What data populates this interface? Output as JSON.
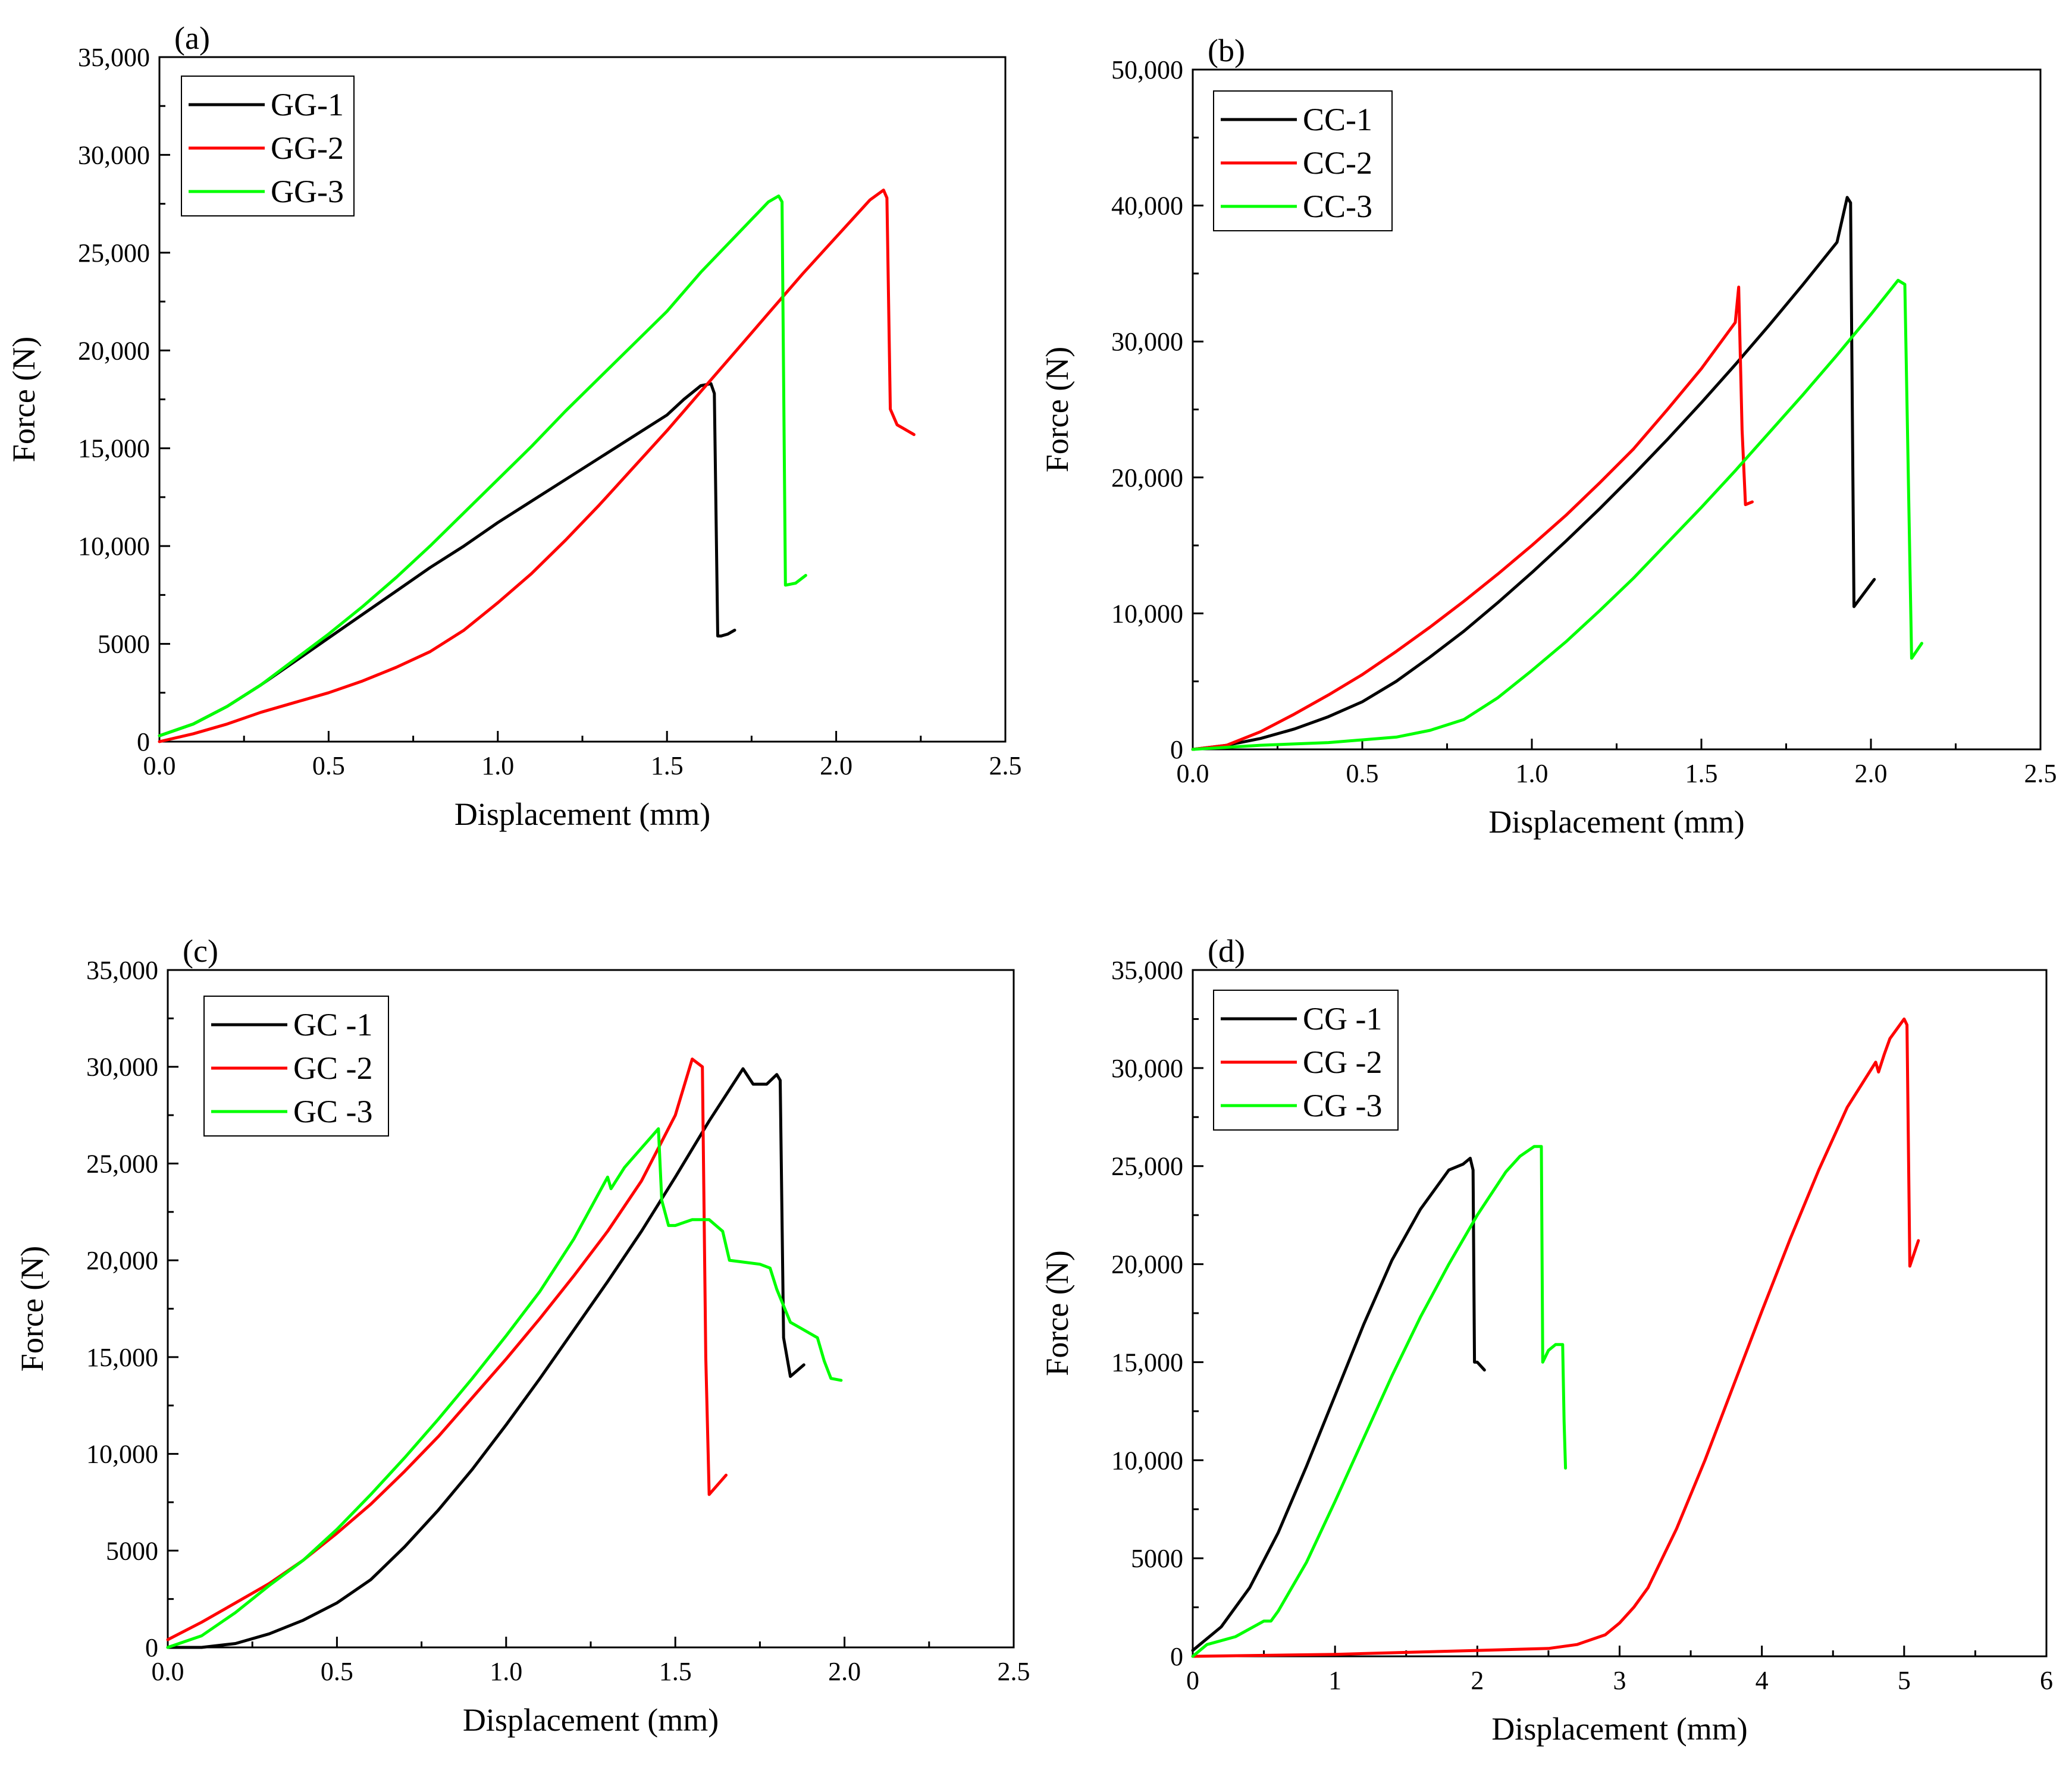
{
  "chart_data": [
    {
      "panel": "(a)",
      "type": "line",
      "xlabel": "Displacement (mm)",
      "ylabel": "Force (N)",
      "xlim": [
        0,
        2.5
      ],
      "ylim": [
        0,
        35000
      ],
      "xticks": [
        0,
        0.5,
        1,
        1.5,
        2,
        2.5
      ],
      "xtick_labels": [
        "0.0",
        "0.5",
        "1.0",
        "1.5",
        "2.0",
        "2.5"
      ],
      "yticks": [
        0,
        5000,
        10000,
        15000,
        20000,
        25000,
        30000,
        35000
      ],
      "ytick_labels": [
        "0",
        "5000",
        "10,000",
        "15,000",
        "20,000",
        "25,000",
        "30,000",
        "35,000"
      ],
      "legend_position": "top-left",
      "series": [
        {
          "name": "GG-1",
          "color": "#000000",
          "x": [
            0,
            0.1,
            0.2,
            0.3,
            0.4,
            0.5,
            0.6,
            0.7,
            0.8,
            0.9,
            1.0,
            1.1,
            1.2,
            1.3,
            1.4,
            1.5,
            1.55,
            1.6,
            1.63,
            1.64,
            1.65,
            1.66,
            1.68,
            1.7
          ],
          "y": [
            300,
            900,
            1800,
            2900,
            4100,
            5300,
            6500,
            7700,
            8900,
            10000,
            11200,
            12300,
            13400,
            14500,
            15600,
            16700,
            17500,
            18200,
            18300,
            17800,
            5400,
            5400,
            5500,
            5700
          ]
        },
        {
          "name": "GG-2",
          "color": "#ff0000",
          "x": [
            0,
            0.1,
            0.2,
            0.3,
            0.4,
            0.5,
            0.6,
            0.7,
            0.8,
            0.9,
            1.0,
            1.1,
            1.2,
            1.3,
            1.4,
            1.5,
            1.6,
            1.7,
            1.8,
            1.9,
            2.0,
            2.1,
            2.14,
            2.15,
            2.16,
            2.18,
            2.2,
            2.23
          ],
          "y": [
            0,
            400,
            900,
            1500,
            2000,
            2500,
            3100,
            3800,
            4600,
            5700,
            7100,
            8600,
            10300,
            12100,
            14000,
            15900,
            17900,
            19900,
            21900,
            23900,
            25800,
            27700,
            28200,
            27800,
            17000,
            16200,
            16000,
            15700
          ]
        },
        {
          "name": "GG-3",
          "color": "#00ff00",
          "x": [
            0,
            0.1,
            0.2,
            0.3,
            0.4,
            0.5,
            0.6,
            0.7,
            0.8,
            0.9,
            1.0,
            1.1,
            1.2,
            1.3,
            1.4,
            1.5,
            1.6,
            1.7,
            1.8,
            1.83,
            1.84,
            1.85,
            1.88,
            1.91
          ],
          "y": [
            300,
            900,
            1800,
            2900,
            4200,
            5500,
            6900,
            8400,
            10000,
            11700,
            13400,
            15100,
            16900,
            18600,
            20300,
            22000,
            24000,
            25800,
            27600,
            27900,
            27600,
            8000,
            8100,
            8500
          ]
        }
      ]
    },
    {
      "panel": "(b)",
      "type": "line",
      "xlabel": "Displacement (mm)",
      "ylabel": "Force (N)",
      "xlim": [
        0,
        2.5
      ],
      "ylim": [
        0,
        50000
      ],
      "xticks": [
        0,
        0.5,
        1,
        1.5,
        2,
        2.5
      ],
      "xtick_labels": [
        "0.0",
        "0.5",
        "1.0",
        "1.5",
        "2.0",
        "2.5"
      ],
      "yticks": [
        0,
        10000,
        20000,
        30000,
        40000,
        50000
      ],
      "ytick_labels": [
        "0",
        "10,000",
        "20,000",
        "30,000",
        "40,000",
        "50,000"
      ],
      "legend_position": "top-left",
      "series": [
        {
          "name": "CC-1",
          "color": "#000000",
          "x": [
            0,
            0.1,
            0.2,
            0.3,
            0.4,
            0.5,
            0.6,
            0.7,
            0.8,
            0.9,
            1.0,
            1.1,
            1.2,
            1.3,
            1.4,
            1.5,
            1.6,
            1.7,
            1.8,
            1.9,
            1.93,
            1.94,
            1.95,
            1.98,
            2.01
          ],
          "y": [
            0,
            300,
            800,
            1500,
            2400,
            3500,
            5000,
            6800,
            8700,
            10800,
            13000,
            15300,
            17700,
            20200,
            22800,
            25500,
            28300,
            31200,
            34200,
            37300,
            40600,
            40200,
            10500,
            11500,
            12500
          ]
        },
        {
          "name": "CC-2",
          "color": "#ff0000",
          "x": [
            0,
            0.1,
            0.2,
            0.3,
            0.4,
            0.5,
            0.6,
            0.7,
            0.8,
            0.9,
            1.0,
            1.1,
            1.2,
            1.3,
            1.4,
            1.5,
            1.6,
            1.61,
            1.62,
            1.63,
            1.65
          ],
          "y": [
            0,
            300,
            1300,
            2600,
            4000,
            5500,
            7200,
            9000,
            10900,
            12900,
            15000,
            17200,
            19600,
            22100,
            25000,
            28000,
            31400,
            34000,
            23500,
            18000,
            18200
          ]
        },
        {
          "name": "CC-3",
          "color": "#00ff00",
          "x": [
            0,
            0.2,
            0.4,
            0.6,
            0.7,
            0.8,
            0.9,
            1.0,
            1.1,
            1.2,
            1.3,
            1.4,
            1.5,
            1.6,
            1.7,
            1.8,
            1.9,
            2.0,
            2.08,
            2.1,
            2.12,
            2.15
          ],
          "y": [
            0,
            300,
            500,
            900,
            1400,
            2200,
            3800,
            5800,
            7900,
            10200,
            12600,
            15200,
            17800,
            20500,
            23300,
            26100,
            29000,
            32000,
            34500,
            34200,
            6700,
            7800
          ]
        }
      ]
    },
    {
      "panel": "(c)",
      "type": "line",
      "xlabel": "Displacement (mm)",
      "ylabel": "Force (N)",
      "xlim": [
        0,
        2.5
      ],
      "ylim": [
        0,
        35000
      ],
      "xticks": [
        0,
        0.5,
        1,
        1.5,
        2,
        2.5
      ],
      "xtick_labels": [
        "0.0",
        "0.5",
        "1.0",
        "1.5",
        "2.0",
        "2.5"
      ],
      "yticks": [
        0,
        5000,
        10000,
        15000,
        20000,
        25000,
        30000,
        35000
      ],
      "ytick_labels": [
        "0",
        "5000",
        "10,000",
        "15,000",
        "20,000",
        "25,000",
        "30,000",
        "35,000"
      ],
      "legend_position": "top-left",
      "series": [
        {
          "name": "GC -1",
          "color": "#000000",
          "x": [
            0,
            0.1,
            0.2,
            0.3,
            0.4,
            0.5,
            0.6,
            0.7,
            0.8,
            0.9,
            1.0,
            1.1,
            1.2,
            1.3,
            1.4,
            1.5,
            1.6,
            1.7,
            1.73,
            1.77,
            1.8,
            1.81,
            1.82,
            1.84,
            1.88
          ],
          "y": [
            0,
            0,
            200,
            700,
            1400,
            2300,
            3500,
            5200,
            7100,
            9200,
            11500,
            13900,
            16400,
            18900,
            21500,
            24300,
            27200,
            29900,
            29100,
            29100,
            29600,
            29300,
            16000,
            14000,
            14600
          ]
        },
        {
          "name": "GC -2",
          "color": "#ff0000",
          "x": [
            0,
            0.1,
            0.2,
            0.3,
            0.4,
            0.5,
            0.6,
            0.7,
            0.8,
            0.9,
            1.0,
            1.1,
            1.2,
            1.3,
            1.4,
            1.5,
            1.55,
            1.58,
            1.59,
            1.6,
            1.65
          ],
          "y": [
            400,
            1300,
            2300,
            3300,
            4500,
            5900,
            7400,
            9100,
            10900,
            12900,
            14900,
            17000,
            19200,
            21500,
            24100,
            27500,
            30400,
            30000,
            15000,
            7900,
            8900
          ]
        },
        {
          "name": "GC -3",
          "color": "#00ff00",
          "x": [
            0,
            0.1,
            0.2,
            0.3,
            0.4,
            0.5,
            0.6,
            0.7,
            0.8,
            0.9,
            1.0,
            1.1,
            1.2,
            1.3,
            1.31,
            1.35,
            1.4,
            1.45,
            1.46,
            1.48,
            1.5,
            1.55,
            1.6,
            1.62,
            1.64,
            1.66,
            1.75,
            1.78,
            1.8,
            1.84,
            1.87,
            1.92,
            1.94,
            1.96,
            1.99
          ],
          "y": [
            0,
            600,
            1800,
            3200,
            4500,
            6100,
            7900,
            9800,
            11800,
            13900,
            16100,
            18400,
            21100,
            24300,
            23700,
            24800,
            25800,
            26800,
            23100,
            21800,
            21800,
            22100,
            22100,
            21800,
            21500,
            20000,
            19800,
            19600,
            18500,
            16800,
            16500,
            16000,
            14800,
            13900,
            13800
          ]
        }
      ]
    },
    {
      "panel": "(d)",
      "type": "line",
      "xlabel": "Displacement (mm)",
      "ylabel": "Force (N)",
      "xlim": [
        0,
        6
      ],
      "ylim": [
        0,
        35000
      ],
      "xticks": [
        0,
        1,
        2,
        3,
        4,
        5,
        6
      ],
      "xtick_labels": [
        "0",
        "1",
        "2",
        "3",
        "4",
        "5",
        "6"
      ],
      "yticks": [
        0,
        5000,
        10000,
        15000,
        20000,
        25000,
        30000,
        35000
      ],
      "ytick_labels": [
        "0",
        "5000",
        "10,000",
        "15,000",
        "20,000",
        "25,000",
        "30,000",
        "35,000"
      ],
      "legend_position": "top-left",
      "series": [
        {
          "name": "CG -1",
          "color": "#000000",
          "x": [
            0,
            0.2,
            0.4,
            0.6,
            0.8,
            1.0,
            1.2,
            1.4,
            1.6,
            1.8,
            1.9,
            1.95,
            1.97,
            1.98,
            2.0,
            2.05
          ],
          "y": [
            300,
            1500,
            3500,
            6300,
            9700,
            13300,
            16900,
            20200,
            22800,
            24800,
            25100,
            25400,
            24800,
            15000,
            15000,
            14600
          ]
        },
        {
          "name": "CG -2",
          "color": "#ff0000",
          "x": [
            0,
            0.5,
            1.0,
            1.5,
            2.0,
            2.5,
            2.7,
            2.9,
            3.0,
            3.1,
            3.2,
            3.4,
            3.6,
            3.8,
            4.0,
            4.2,
            4.4,
            4.6,
            4.8,
            4.82,
            4.86,
            4.9,
            5.0,
            5.02,
            5.04,
            5.1
          ],
          "y": [
            0,
            50,
            100,
            200,
            300,
            400,
            600,
            1100,
            1700,
            2500,
            3500,
            6500,
            10000,
            13800,
            17600,
            21300,
            24800,
            28000,
            30300,
            29800,
            30700,
            31500,
            32500,
            32200,
            19900,
            21200
          ]
        },
        {
          "name": "CG -3",
          "color": "#00ff00",
          "x": [
            0,
            0.1,
            0.3,
            0.5,
            0.55,
            0.6,
            0.8,
            1.0,
            1.2,
            1.4,
            1.6,
            1.8,
            2.0,
            2.2,
            2.3,
            2.4,
            2.45,
            2.46,
            2.5,
            2.55,
            2.6,
            2.61,
            2.62
          ],
          "y": [
            0,
            600,
            1000,
            1800,
            1800,
            2300,
            4800,
            7900,
            11100,
            14300,
            17300,
            20000,
            22500,
            24700,
            25500,
            26000,
            26000,
            15000,
            15600,
            15900,
            15900,
            12000,
            9600
          ]
        }
      ]
    }
  ]
}
